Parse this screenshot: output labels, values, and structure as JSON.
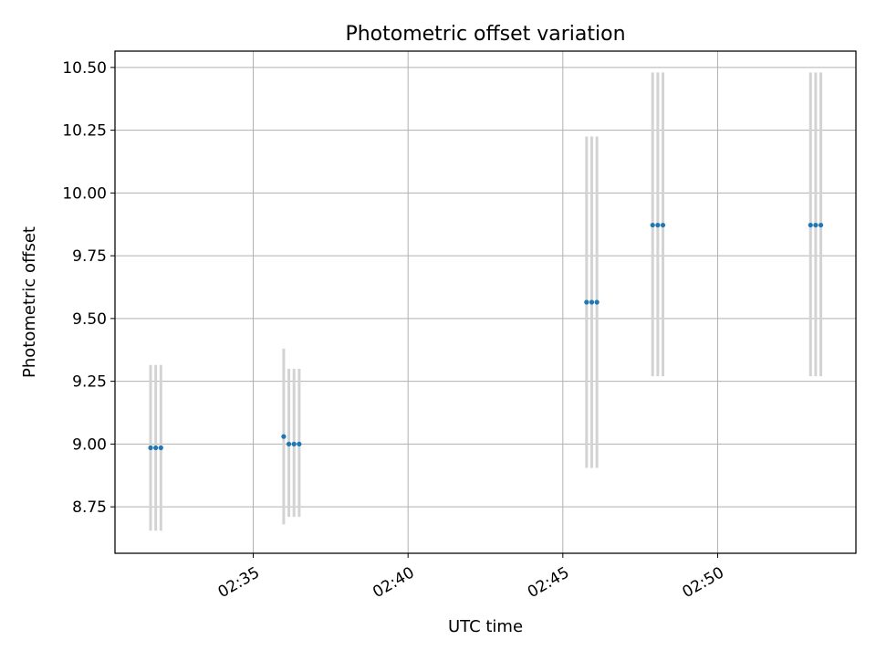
{
  "chart_data": {
    "type": "scatter",
    "title": "Photometric offset variation",
    "xlabel": "UTC time",
    "ylabel": "Photometric offset",
    "x_unit": "time (HH:MM)",
    "xlim": [
      "02:30:32",
      "02:54:28"
    ],
    "ylim": [
      8.565,
      10.565
    ],
    "x_ticks": [
      "02:35",
      "02:40",
      "02:45",
      "02:50"
    ],
    "y_ticks": [
      "8.75",
      "9.00",
      "9.25",
      "9.50",
      "9.75",
      "10.00",
      "10.25",
      "10.50"
    ],
    "grid": true,
    "series": [
      {
        "marker_color": "#1f77b4",
        "errorbar_color": "#d3d3d3",
        "points": [
          {
            "x": "02:31:41",
            "y": 8.985,
            "ylo": 8.655,
            "yhi": 9.315
          },
          {
            "x": "02:31:51",
            "y": 8.985,
            "ylo": 8.655,
            "yhi": 9.315
          },
          {
            "x": "02:32:01",
            "y": 8.985,
            "ylo": 8.655,
            "yhi": 9.315
          },
          {
            "x": "02:35:59",
            "y": 9.03,
            "ylo": 8.68,
            "yhi": 9.38
          },
          {
            "x": "02:36:09",
            "y": 9.0,
            "ylo": 8.71,
            "yhi": 9.3
          },
          {
            "x": "02:36:19",
            "y": 9.0,
            "ylo": 8.71,
            "yhi": 9.3
          },
          {
            "x": "02:36:29",
            "y": 9.0,
            "ylo": 8.71,
            "yhi": 9.3
          },
          {
            "x": "02:45:46",
            "y": 9.565,
            "ylo": 8.905,
            "yhi": 10.225
          },
          {
            "x": "02:45:56",
            "y": 9.565,
            "ylo": 8.905,
            "yhi": 10.225
          },
          {
            "x": "02:46:06",
            "y": 9.565,
            "ylo": 8.905,
            "yhi": 10.225
          },
          {
            "x": "02:47:54",
            "y": 9.872,
            "ylo": 9.27,
            "yhi": 10.48
          },
          {
            "x": "02:48:04",
            "y": 9.872,
            "ylo": 9.27,
            "yhi": 10.48
          },
          {
            "x": "02:48:14",
            "y": 9.872,
            "ylo": 9.27,
            "yhi": 10.48
          },
          {
            "x": "02:53:00",
            "y": 9.872,
            "ylo": 9.27,
            "yhi": 10.48
          },
          {
            "x": "02:53:10",
            "y": 9.872,
            "ylo": 9.27,
            "yhi": 10.48
          },
          {
            "x": "02:53:20",
            "y": 9.872,
            "ylo": 9.27,
            "yhi": 10.48
          }
        ]
      }
    ]
  }
}
